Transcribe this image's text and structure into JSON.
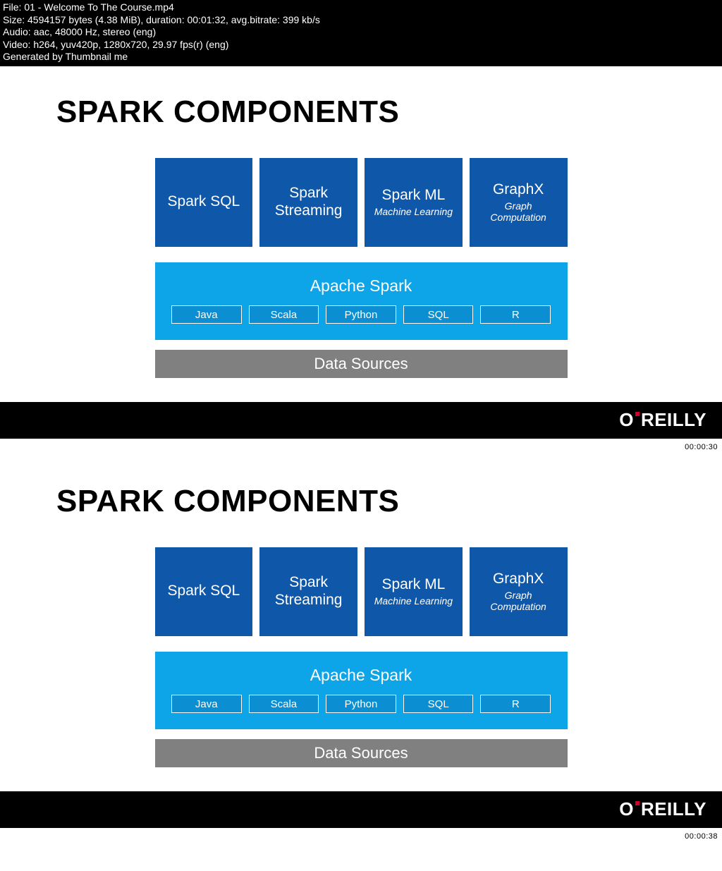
{
  "header": {
    "lines": [
      "File: 01 - Welcome To The Course.mp4",
      "Size: 4594157 bytes (4.38 MiB), duration: 00:01:32, avg.bitrate: 399 kb/s",
      "Audio: aac, 48000 Hz, stereo (eng)",
      "Video: h264, yuv420p, 1280x720, 29.97 fps(r) (eng)",
      "Generated by Thumbnail me"
    ]
  },
  "slide": {
    "title": "SPARK COMPONENTS",
    "components": [
      {
        "title": "Spark SQL",
        "subtitle": ""
      },
      {
        "title": "Spark Streaming",
        "subtitle": ""
      },
      {
        "title": "Spark ML",
        "subtitle": "Machine Learning"
      },
      {
        "title": "GraphX",
        "subtitle": "Graph Computation"
      }
    ],
    "component_color": "#0f57a8",
    "spark_label": "Apache Spark",
    "spark_color": "#0ea4e8",
    "languages": [
      "Java",
      "Scala",
      "Python",
      "SQL",
      "R"
    ],
    "lang_box_color": "#0b8fd2",
    "data_sources_label": "Data Sources",
    "data_sources_color": "#808080",
    "brand_prefix": "O",
    "brand_suffix": "REILLY"
  },
  "frames": [
    {
      "timestamp": "00:00:30"
    },
    {
      "timestamp": "00:00:38"
    }
  ]
}
